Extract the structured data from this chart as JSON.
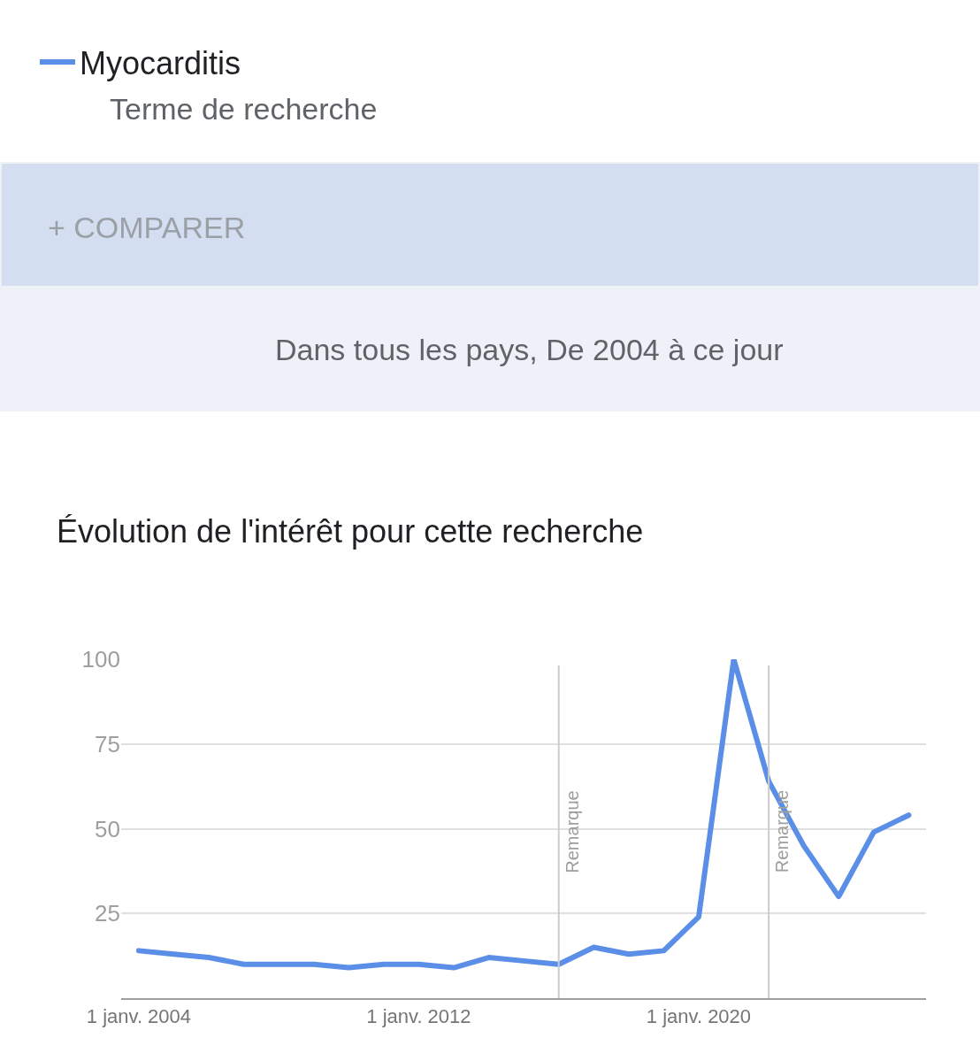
{
  "chart_data": {
    "type": "line",
    "title": "Évolution de l'intérêt pour cette recherche",
    "subtitle": "Terme de recherche",
    "annotations": [
      "+ COMPARER",
      "Dans tous les pays, De 2004 à ce jour"
    ],
    "x": [
      "2004",
      "2005",
      "2006",
      "2007",
      "2008",
      "2009",
      "2010",
      "2011",
      "2012",
      "2013",
      "2014",
      "2015",
      "2016",
      "2017",
      "2018",
      "2019",
      "2020",
      "2021",
      "2022",
      "2023",
      "2024",
      "2025",
      "2026"
    ],
    "series": [
      {
        "name": "Myocarditis",
        "color": "#5b8ee6",
        "values": [
          14,
          13,
          12,
          10,
          10,
          10,
          9,
          10,
          10,
          9,
          12,
          11,
          10,
          15,
          13,
          14,
          24,
          100,
          64,
          45,
          30,
          49,
          54
        ]
      }
    ],
    "xlim": [
      "2003-07",
      "2026-07"
    ],
    "xticks": [
      {
        "value": "2004",
        "label": "1 janv. 2004"
      },
      {
        "value": "2012",
        "label": "1 janv. 2012"
      },
      {
        "value": "2020",
        "label": "1 janv. 2020"
      }
    ],
    "ylim": [
      0,
      100
    ],
    "yticks": [
      25,
      50,
      75,
      100
    ],
    "ref_lines": [
      {
        "axis": "x",
        "value": "2016",
        "label": "Remarque",
        "color": "#cccccc"
      },
      {
        "axis": "x",
        "value": "2022",
        "label": "Remarque",
        "color": "#cccccc"
      }
    ],
    "grid": "y",
    "legend": "top left",
    "line_style": "solid",
    "marker": "none"
  }
}
